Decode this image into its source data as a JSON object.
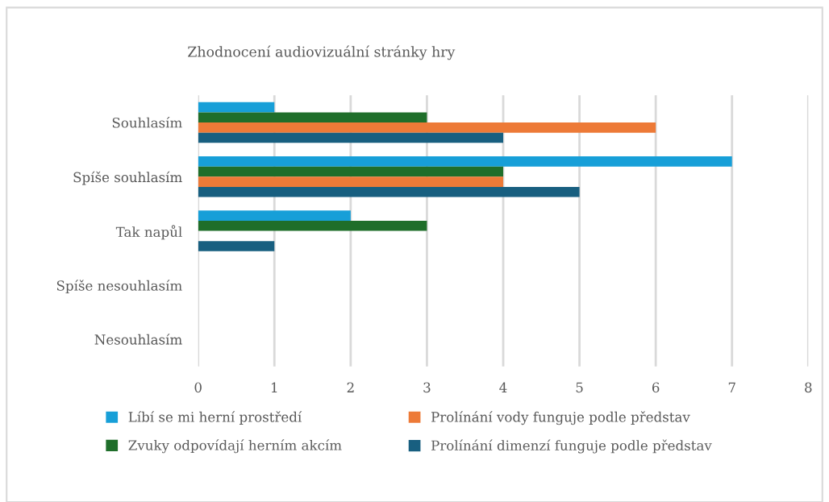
{
  "chart_data": {
    "type": "bar",
    "orientation": "horizontal",
    "title": "Zhodnocení audiovizuální stránky hry",
    "categories": [
      "Souhlasím",
      "Spíše souhlasím",
      "Tak napůl",
      "Spíše nesouhlasím",
      "Nesouhlasím"
    ],
    "series": [
      {
        "name": "Líbí se mi herní prostředí",
        "color": "#179fd8",
        "values": [
          1,
          7,
          2,
          0,
          0
        ]
      },
      {
        "name": "Zvuky odpovídají herním akcím",
        "color": "#1f6e2a",
        "values": [
          3,
          4,
          3,
          0,
          0
        ]
      },
      {
        "name": "Prolínání vody funguje podle představ",
        "color": "#ed7a37",
        "values": [
          6,
          4,
          0,
          0,
          0
        ]
      },
      {
        "name": "Prolínání dimenzí funguje podle představ",
        "color": "#185f80",
        "values": [
          4,
          5,
          1,
          0,
          0
        ]
      }
    ],
    "xlim": [
      0,
      8
    ],
    "xticks": [
      0,
      1,
      2,
      3,
      4,
      5,
      6,
      7,
      8
    ],
    "grid": "x",
    "legend": "bottom"
  }
}
